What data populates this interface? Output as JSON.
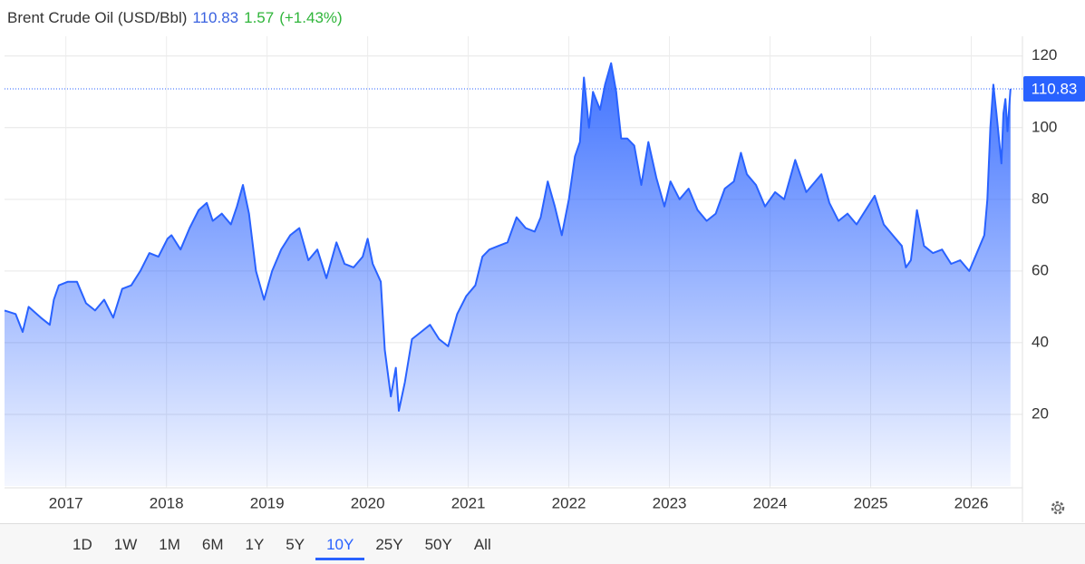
{
  "header": {
    "title": "Brent Crude Oil (USD/Bbl)",
    "price": 110.83,
    "change": 1.57,
    "change_pct": "(+1.43%)"
  },
  "chart_data": {
    "type": "area",
    "price": 110.83,
    "x": [
      2016.39,
      2016.5,
      2016.57,
      2016.63,
      2016.75,
      2016.84,
      2016.88,
      2016.93,
      2017.02,
      2017.11,
      2017.2,
      2017.29,
      2017.38,
      2017.47,
      2017.56,
      2017.65,
      2017.74,
      2017.83,
      2017.92,
      2018.01,
      2018.05,
      2018.14,
      2018.23,
      2018.32,
      2018.4,
      2018.46,
      2018.55,
      2018.64,
      2018.7,
      2018.76,
      2018.82,
      2018.89,
      2018.97,
      2019.05,
      2019.14,
      2019.23,
      2019.32,
      2019.41,
      2019.5,
      2019.59,
      2019.69,
      2019.77,
      2019.86,
      2019.95,
      2020.0,
      2020.05,
      2020.13,
      2020.17,
      2020.23,
      2020.28,
      2020.31,
      2020.37,
      2020.44,
      2020.53,
      2020.62,
      2020.71,
      2020.8,
      2020.89,
      2020.98,
      2021.07,
      2021.14,
      2021.21,
      2021.3,
      2021.39,
      2021.48,
      2021.57,
      2021.66,
      2021.72,
      2021.79,
      2021.86,
      2021.93,
      2022.0,
      2022.06,
      2022.11,
      2022.15,
      2022.2,
      2022.24,
      2022.31,
      2022.36,
      2022.42,
      2022.47,
      2022.52,
      2022.58,
      2022.65,
      2022.72,
      2022.79,
      2022.87,
      2022.95,
      2023.01,
      2023.1,
      2023.19,
      2023.28,
      2023.37,
      2023.46,
      2023.55,
      2023.64,
      2023.71,
      2023.77,
      2023.86,
      2023.95,
      2024.05,
      2024.14,
      2024.25,
      2024.36,
      2024.45,
      2024.51,
      2024.59,
      2024.68,
      2024.77,
      2024.86,
      2024.95,
      2025.04,
      2025.13,
      2025.22,
      2025.31,
      2025.35,
      2025.4,
      2025.46,
      2025.53,
      2025.62,
      2025.71,
      2025.8,
      2025.89,
      2025.98,
      2026.07,
      2026.13,
      2026.16,
      2026.19,
      2026.22,
      2026.25,
      2026.3,
      2026.32,
      2026.34,
      2026.36,
      2026.39
    ],
    "series": [
      {
        "color": "#2962ff",
        "values": [
          49,
          48,
          43,
          50,
          47,
          45,
          52,
          56,
          57,
          57,
          51,
          49,
          52,
          47,
          55,
          56,
          60,
          65,
          64,
          69,
          70,
          66,
          72,
          77,
          79,
          74,
          76,
          73,
          78,
          84,
          76,
          60,
          52,
          60,
          66,
          70,
          72,
          63,
          66,
          58,
          68,
          62,
          61,
          64,
          69,
          62,
          57,
          38,
          25,
          33,
          21,
          29,
          41,
          43,
          45,
          41,
          39,
          48,
          53,
          56,
          64,
          66,
          67,
          68,
          75,
          72,
          71,
          75,
          85,
          78,
          70,
          80,
          92,
          96,
          114,
          100,
          110,
          105,
          112,
          118,
          110,
          97,
          97,
          95,
          84,
          96,
          86,
          78,
          85,
          80,
          83,
          77,
          74,
          76,
          83,
          85,
          93,
          87,
          84,
          78,
          82,
          80,
          91,
          82,
          85,
          87,
          79,
          74,
          76,
          73,
          77,
          81,
          73,
          70,
          67,
          61,
          63,
          77,
          67,
          65,
          66,
          62,
          63,
          60,
          66,
          70,
          80,
          100,
          112,
          104,
          90,
          104,
          108,
          99,
          110.83
        ]
      }
    ],
    "xlim": [
      2016.39,
      2026.5
    ],
    "xticks": [
      2017,
      2018,
      2019,
      2020,
      2021,
      2022,
      2023,
      2024,
      2025,
      2026
    ],
    "ylim": [
      0,
      125
    ],
    "yticks": [
      20,
      40,
      60,
      80,
      100,
      120
    ],
    "grid": true
  },
  "range_buttons": [
    {
      "label": "1D"
    },
    {
      "label": "1W"
    },
    {
      "label": "1M"
    },
    {
      "label": "6M"
    },
    {
      "label": "1Y"
    },
    {
      "label": "5Y"
    },
    {
      "label": "10Y",
      "selected": true
    },
    {
      "label": "25Y"
    },
    {
      "label": "50Y"
    },
    {
      "label": "All"
    }
  ]
}
